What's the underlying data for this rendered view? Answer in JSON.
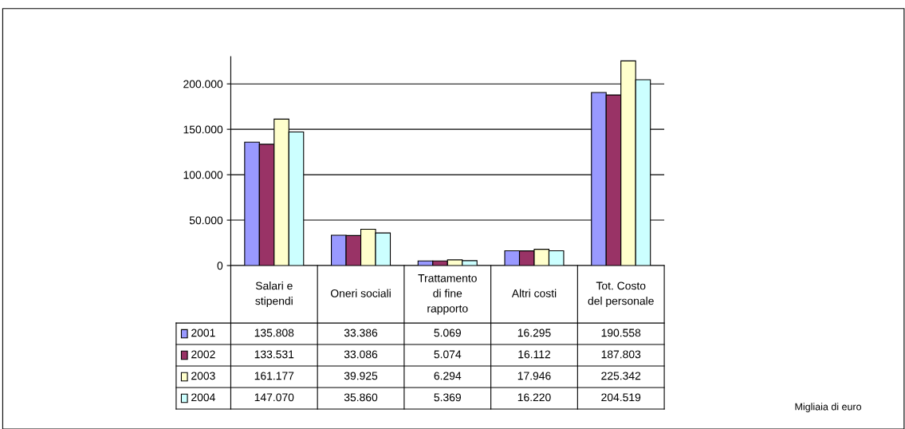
{
  "chart_data": {
    "type": "bar",
    "categories": [
      "Salari e stipendi",
      "Oneri sociali",
      "Trattamento di fine rapporto",
      "Altri costi",
      "Tot. Costo del personale"
    ],
    "series": [
      {
        "name": "2001",
        "color": "#9999ff",
        "values": [
          135808,
          33386,
          5069,
          16295,
          190558
        ],
        "value_labels": [
          "135.808",
          "33.386",
          "5.069",
          "16.295",
          "190.558"
        ]
      },
      {
        "name": "2002",
        "color": "#993366",
        "values": [
          133531,
          33086,
          5074,
          16112,
          187803
        ],
        "value_labels": [
          "133.531",
          "33.086",
          "5.074",
          "16.112",
          "187.803"
        ]
      },
      {
        "name": "2003",
        "color": "#ffffcc",
        "values": [
          161177,
          39925,
          6294,
          17946,
          225342
        ],
        "value_labels": [
          "161.177",
          "39.925",
          "6.294",
          "17.946",
          "225.342"
        ]
      },
      {
        "name": "2004",
        "color": "#ccffff",
        "values": [
          147070,
          35860,
          5369,
          16220,
          204519
        ],
        "value_labels": [
          "147.070",
          "35.860",
          "5.369",
          "16.220",
          "204.519"
        ]
      }
    ],
    "ylim": [
      0,
      230000
    ],
    "yticks": [
      {
        "value": 0,
        "label": "0"
      },
      {
        "value": 50000,
        "label": "50.000"
      },
      {
        "value": 100000,
        "label": "100.000"
      },
      {
        "value": 150000,
        "label": "150.000"
      },
      {
        "value": 200000,
        "label": "200.000"
      }
    ],
    "grid": "y",
    "legend": "bottom left",
    "annotations": [
      "Migliaia di euro"
    ]
  }
}
